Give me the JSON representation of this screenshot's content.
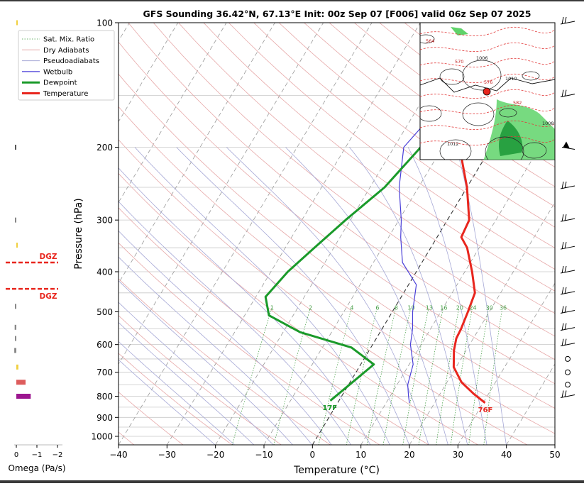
{
  "chart_data": {
    "type": "skew-t sounding",
    "title": "GFS Sounding 36.42°N, 67.13°E Init: 00z Sep 07 [F006] valid 06z Sep 07 2025",
    "xlabel": "Temperature (°C)",
    "ylabel": "Pressure (hPa)",
    "xlim": [
      -40,
      50
    ],
    "ylim": [
      1050,
      100
    ],
    "x_ticks": [
      -40,
      -30,
      -20,
      -10,
      0,
      10,
      20,
      30,
      40,
      50
    ],
    "y_ticks": [
      100,
      200,
      300,
      400,
      500,
      600,
      700,
      800,
      900,
      1000
    ],
    "grid": true,
    "legend": {
      "placement": "top-left",
      "entries": [
        "Sat. Mix. Ratio",
        "Dry Adiabats",
        "Pseudoadiabats",
        "Wetbulb",
        "Dewpoint",
        "Temperature"
      ]
    },
    "series": [
      {
        "name": "Temperature",
        "color": "#e8261e",
        "points": [
          [
            30.4,
            830
          ],
          [
            27.0,
            790
          ],
          [
            23.0,
            740
          ],
          [
            19.5,
            680
          ],
          [
            17.5,
            620
          ],
          [
            16.5,
            580
          ],
          [
            16.3,
            550
          ],
          [
            15.6,
            500
          ],
          [
            14.7,
            450
          ],
          [
            11.5,
            400
          ],
          [
            7.5,
            350
          ],
          [
            5.0,
            330
          ],
          [
            4.5,
            300
          ],
          [
            0.0,
            250
          ],
          [
            -6.5,
            200
          ],
          [
            -12.5,
            150
          ],
          [
            -15.0,
            120
          ],
          [
            -17.0,
            100
          ]
        ]
      },
      {
        "name": "Dewpoint",
        "color": "#1a9a2a",
        "points": [
          [
            -1.8,
            820
          ],
          [
            0.2,
            750
          ],
          [
            2.7,
            670
          ],
          [
            -4.0,
            610
          ],
          [
            -16.5,
            560
          ],
          [
            -25.0,
            510
          ],
          [
            -28.0,
            460
          ],
          [
            -26.5,
            400
          ],
          [
            -24.0,
            350
          ],
          [
            -21.0,
            300
          ],
          [
            -17.0,
            250
          ],
          [
            -14.5,
            200
          ],
          [
            -14.0,
            150
          ],
          [
            -7.0,
            100
          ]
        ]
      },
      {
        "name": "Wetbulb",
        "color": "#4a3fd8",
        "points": [
          [
            14.8,
            830
          ],
          [
            13.8,
            800
          ],
          [
            12.2,
            750
          ],
          [
            10.8,
            670
          ],
          [
            7.8,
            600
          ],
          [
            6.3,
            550
          ],
          [
            4.2,
            500
          ],
          [
            1.6,
            430
          ],
          [
            -4.0,
            380
          ],
          [
            -7.5,
            330
          ],
          [
            -9.5,
            300
          ],
          [
            -14.0,
            250
          ],
          [
            -18.0,
            200
          ],
          [
            -15.0,
            150
          ],
          [
            -17.0,
            100
          ]
        ]
      }
    ],
    "annotations": {
      "surface_temp": "76F",
      "surface_dewpoint": "17F",
      "dgz_label": "DGZ",
      "mixing_ratio_labels": [
        "1",
        "2",
        "4",
        "6",
        "8",
        "10",
        "13",
        "16",
        "20",
        "24",
        "30",
        "36"
      ]
    },
    "omega": {
      "xlabel": "Omega (Pa/s)",
      "x_ticks": [
        "0",
        "−1",
        "−2"
      ],
      "bars": [
        {
          "p": 800,
          "value": -0.7,
          "color": "#9c168f"
        },
        {
          "p": 740,
          "value": -0.45,
          "color": "#dd5c5c"
        },
        {
          "p": 680,
          "value": -0.1,
          "color": "#f0d040"
        },
        {
          "p": 620,
          "value": 0.1,
          "color": "#888888"
        },
        {
          "p": 580,
          "value": 0.07,
          "color": "#888888"
        },
        {
          "p": 545,
          "value": 0.08,
          "color": "#888888"
        },
        {
          "p": 485,
          "value": 0.02,
          "color": "#888888"
        },
        {
          "p": 345,
          "value": -0.04,
          "color": "#f0d040"
        },
        {
          "p": 300,
          "value": 0.02,
          "color": "#888888"
        },
        {
          "p": 200,
          "value": 0.03,
          "color": "#555555"
        },
        {
          "p": 100,
          "value": -0.03,
          "color": "#f0d040"
        }
      ],
      "dgz_pressures": [
        380,
        440
      ]
    },
    "wind_barbs": [
      {
        "p": 100,
        "type": "barb"
      },
      {
        "p": 150,
        "type": "barb"
      },
      {
        "p": 200,
        "type": "pennant"
      },
      {
        "p": 250,
        "type": "barb"
      },
      {
        "p": 300,
        "type": "barb"
      },
      {
        "p": 350,
        "type": "barb"
      },
      {
        "p": 400,
        "type": "barb"
      },
      {
        "p": 450,
        "type": "barb"
      },
      {
        "p": 500,
        "type": "barb"
      },
      {
        "p": 550,
        "type": "barb"
      },
      {
        "p": 600,
        "type": "barb"
      },
      {
        "p": 650,
        "type": "calm"
      },
      {
        "p": 700,
        "type": "calm"
      },
      {
        "p": 750,
        "type": "calm"
      },
      {
        "p": 800,
        "type": "barb"
      }
    ],
    "inset_map": {
      "type": "map",
      "station_marker_color": "#e8261e",
      "contour_labels": [
        "564",
        "570",
        "576",
        "582",
        "1008",
        "1012",
        "1006",
        "1010"
      ]
    }
  }
}
